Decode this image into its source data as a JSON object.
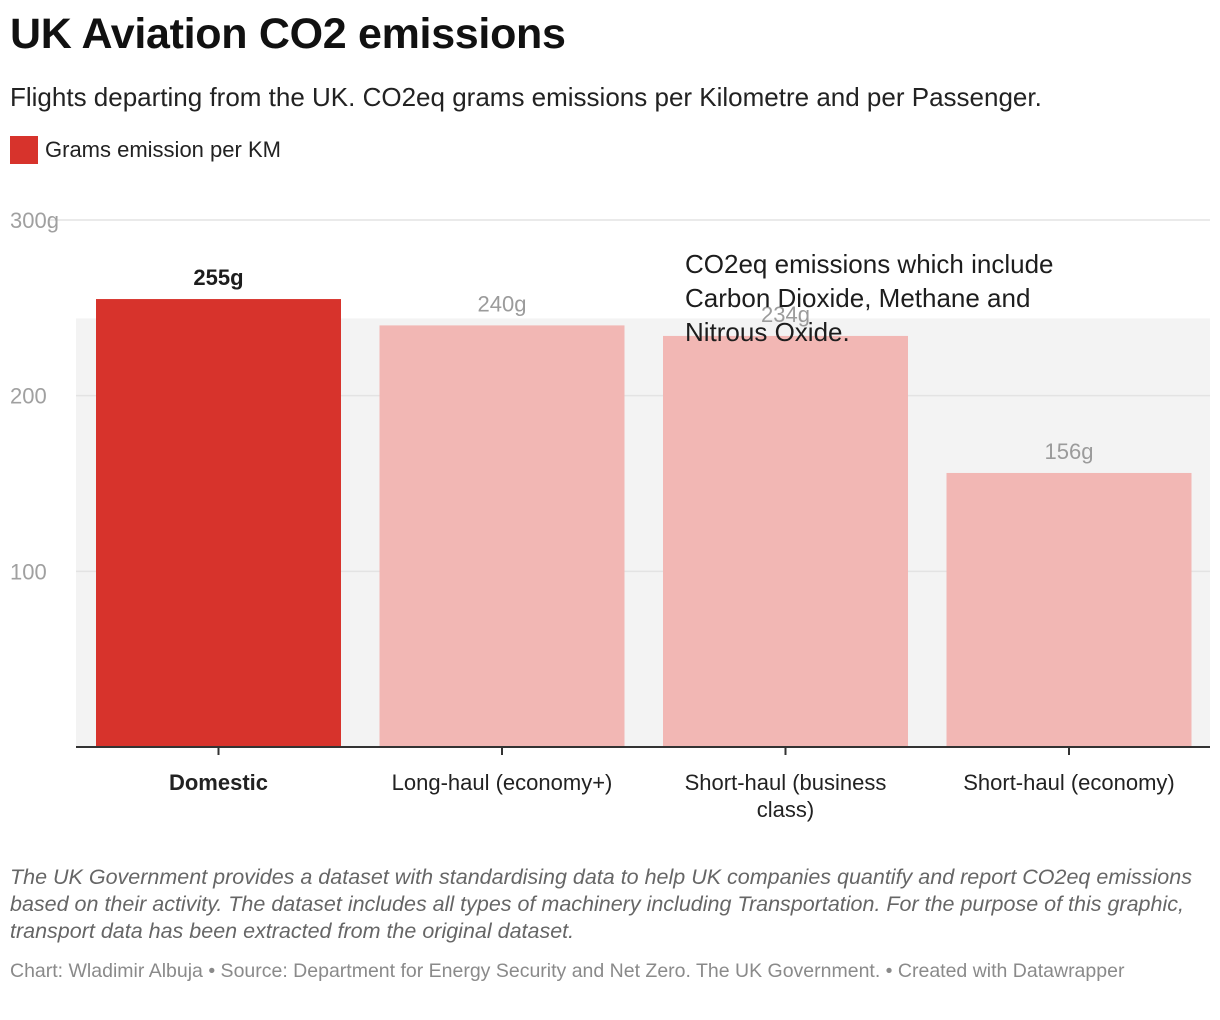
{
  "header": {
    "title": "UK Aviation CO2 emissions",
    "subtitle": "Flights departing from the UK. CO2eq grams emissions per Kilometre and per Passenger."
  },
  "legend": {
    "label": "Grams emission per KM",
    "color": "#d7332c"
  },
  "chart_data": {
    "type": "bar",
    "title": "UK Aviation CO2 emissions",
    "xlabel": "",
    "ylabel": "",
    "ylim": [
      0,
      300
    ],
    "y_ticks": [
      {
        "value": 100,
        "label": "100"
      },
      {
        "value": 200,
        "label": "200"
      },
      {
        "value": 300,
        "label": "300g"
      }
    ],
    "grid": true,
    "categories": [
      {
        "lines": [
          "Domestic"
        ],
        "highlight": true
      },
      {
        "lines": [
          "Long-haul (economy+)"
        ],
        "highlight": false
      },
      {
        "lines": [
          "Short-haul (business",
          "class)"
        ],
        "highlight": false
      },
      {
        "lines": [
          "Short-haul (economy)"
        ],
        "highlight": false
      }
    ],
    "series": [
      {
        "name": "Grams emission per KM",
        "values": [
          255,
          240,
          234,
          156
        ],
        "labels": [
          "255g",
          "240g",
          "234g",
          "156g"
        ]
      }
    ],
    "colors": {
      "highlight": "#d7332c",
      "muted": "#f2b7b4",
      "label_highlight": "#1d1d1d",
      "label_muted": "#9b9b9b",
      "band": "#f3f3f3",
      "grid": "#e3e3e3",
      "axis": "#333333"
    },
    "shaded_band": {
      "from": 0,
      "to": 244
    },
    "annotation": {
      "lines": [
        "CO2eq emissions which include",
        "Carbon Dioxide, Methane and",
        "Nitrous Oxide."
      ]
    }
  },
  "notes": "The UK Government provides a dataset with standardising data to help UK companies quantify and report CO2eq emissions based on their activity. The dataset includes all types of machinery including Transportation. For the purpose of this graphic, transport data has been extracted from the original dataset.",
  "footer": "Chart: Wladimir Albuja • Source: Department for Energy Security and Net Zero. The UK Government.  • Created with Datawrapper"
}
